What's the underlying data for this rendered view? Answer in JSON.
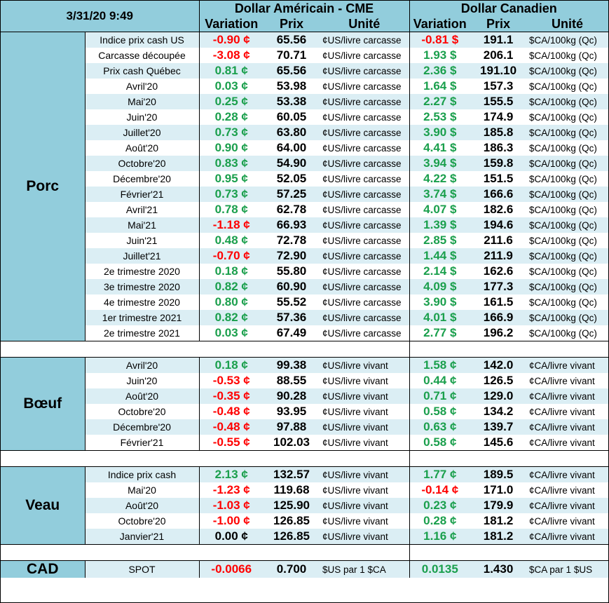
{
  "header": {
    "timestamp": "3/31/20 9:49",
    "usd_title": "Dollar Américain - CME",
    "cad_title": "Dollar Canadien",
    "variation": "Variation",
    "prix": "Prix",
    "unite": "Unité"
  },
  "colors": {
    "header_bg": "#92cddc",
    "stripe": "#dbeef4",
    "positive": "#1a9f4c",
    "negative": "#ff0000"
  },
  "sections": [
    {
      "name": "Porc",
      "rows": [
        [
          "Indice prix cash US",
          "-0.90 ¢",
          "65.56",
          "¢US/livre carcasse",
          "-0.81 $",
          "191.1",
          "$CA/100kg (Qc)"
        ],
        [
          "Carcasse découpée",
          "-3.08 ¢",
          "70.71",
          "¢US/livre carcasse",
          "1.93 $",
          "206.1",
          "$CA/100kg (Qc)"
        ],
        [
          "Prix cash Québec",
          "0.81 ¢",
          "65.56",
          "¢US/livre carcasse",
          "2.36 $",
          "191.10",
          "$CA/100kg (Qc)"
        ],
        [
          "Avril'20",
          "0.03 ¢",
          "53.98",
          "¢US/livre carcasse",
          "1.64 $",
          "157.3",
          "$CA/100kg (Qc)"
        ],
        [
          "Mai'20",
          "0.25 ¢",
          "53.38",
          "¢US/livre carcasse",
          "2.27 $",
          "155.5",
          "$CA/100kg (Qc)"
        ],
        [
          "Juin'20",
          "0.28 ¢",
          "60.05",
          "¢US/livre carcasse",
          "2.53 $",
          "174.9",
          "$CA/100kg (Qc)"
        ],
        [
          "Juillet'20",
          "0.73 ¢",
          "63.80",
          "¢US/livre carcasse",
          "3.90 $",
          "185.8",
          "$CA/100kg (Qc)"
        ],
        [
          "Août'20",
          "0.90 ¢",
          "64.00",
          "¢US/livre carcasse",
          "4.41 $",
          "186.3",
          "$CA/100kg (Qc)"
        ],
        [
          "Octobre'20",
          "0.83 ¢",
          "54.90",
          "¢US/livre carcasse",
          "3.94 $",
          "159.8",
          "$CA/100kg (Qc)"
        ],
        [
          "Décembre'20",
          "0.95 ¢",
          "52.05",
          "¢US/livre carcasse",
          "4.22 $",
          "151.5",
          "$CA/100kg (Qc)"
        ],
        [
          "Février'21",
          "0.73 ¢",
          "57.25",
          "¢US/livre carcasse",
          "3.74 $",
          "166.6",
          "$CA/100kg (Qc)"
        ],
        [
          "Avril'21",
          "0.78 ¢",
          "62.78",
          "¢US/livre carcasse",
          "4.07 $",
          "182.6",
          "$CA/100kg (Qc)"
        ],
        [
          "Mai'21",
          "-1.18 ¢",
          "66.93",
          "¢US/livre carcasse",
          "1.39 $",
          "194.6",
          "$CA/100kg (Qc)"
        ],
        [
          "Juin'21",
          "0.48 ¢",
          "72.78",
          "¢US/livre carcasse",
          "2.85 $",
          "211.6",
          "$CA/100kg (Qc)"
        ],
        [
          "Juillet'21",
          "-0.70 ¢",
          "72.90",
          "¢US/livre carcasse",
          "1.44 $",
          "211.9",
          "$CA/100kg (Qc)"
        ],
        [
          "2e trimestre 2020",
          "0.18 ¢",
          "55.80",
          "¢US/livre carcasse",
          "2.14 $",
          "162.6",
          "$CA/100kg (Qc)"
        ],
        [
          "3e trimestre 2020",
          "0.82 ¢",
          "60.90",
          "¢US/livre carcasse",
          "4.09 $",
          "177.3",
          "$CA/100kg (Qc)"
        ],
        [
          "4e trimestre 2020",
          "0.80 ¢",
          "55.52",
          "¢US/livre carcasse",
          "3.90 $",
          "161.5",
          "$CA/100kg (Qc)"
        ],
        [
          "1er trimestre 2021",
          "0.82 ¢",
          "57.36",
          "¢US/livre carcasse",
          "4.01 $",
          "166.9",
          "$CA/100kg (Qc)"
        ],
        [
          "2e trimestre 2021",
          "0.03 ¢",
          "67.49",
          "¢US/livre carcasse",
          "2.77 $",
          "196.2",
          "$CA/100kg (Qc)"
        ]
      ]
    },
    {
      "name": "Bœuf",
      "rows": [
        [
          "Avril'20",
          "0.18 ¢",
          "99.38",
          "¢US/livre vivant",
          "1.58 ¢",
          "142.0",
          "¢CA/livre vivant"
        ],
        [
          "Juin'20",
          "-0.53 ¢",
          "88.55",
          "¢US/livre vivant",
          "0.44 ¢",
          "126.5",
          "¢CA/livre vivant"
        ],
        [
          "Août'20",
          "-0.35 ¢",
          "90.28",
          "¢US/livre vivant",
          "0.71 ¢",
          "129.0",
          "¢CA/livre vivant"
        ],
        [
          "Octobre'20",
          "-0.48 ¢",
          "93.95",
          "¢US/livre vivant",
          "0.58 ¢",
          "134.2",
          "¢CA/livre vivant"
        ],
        [
          "Décembre'20",
          "-0.48 ¢",
          "97.88",
          "¢US/livre vivant",
          "0.63 ¢",
          "139.7",
          "¢CA/livre vivant"
        ],
        [
          "Février'21",
          "-0.55 ¢",
          "102.03",
          "¢US/livre vivant",
          "0.58 ¢",
          "145.6",
          "¢CA/livre vivant"
        ]
      ]
    },
    {
      "name": "Veau",
      "rows": [
        [
          "Indice prix cash",
          "2.13 ¢",
          "132.57",
          "¢US/livre vivant",
          "1.77 ¢",
          "189.5",
          "¢CA/livre vivant"
        ],
        [
          "Mai'20",
          "-1.23 ¢",
          "119.68",
          "¢US/livre vivant",
          "-0.14 ¢",
          "171.0",
          "¢CA/livre vivant"
        ],
        [
          "Août'20",
          "-1.03 ¢",
          "125.90",
          "¢US/livre vivant",
          "0.23 ¢",
          "179.9",
          "¢CA/livre vivant"
        ],
        [
          "Octobre'20",
          "-1.00 ¢",
          "126.85",
          "¢US/livre vivant",
          "0.28 ¢",
          "181.2",
          "¢CA/livre vivant"
        ],
        [
          "Janvier'21",
          "0.00 ¢",
          "126.85",
          "¢US/livre vivant",
          "1.16 ¢",
          "181.2",
          "¢CA/livre vivant"
        ]
      ]
    },
    {
      "name": "CAD",
      "rows": [
        [
          "SPOT",
          "-0.0066",
          "0.700",
          "$US par 1 $CA",
          "0.0135",
          "1.430",
          "$CA par 1 $US"
        ]
      ]
    }
  ]
}
